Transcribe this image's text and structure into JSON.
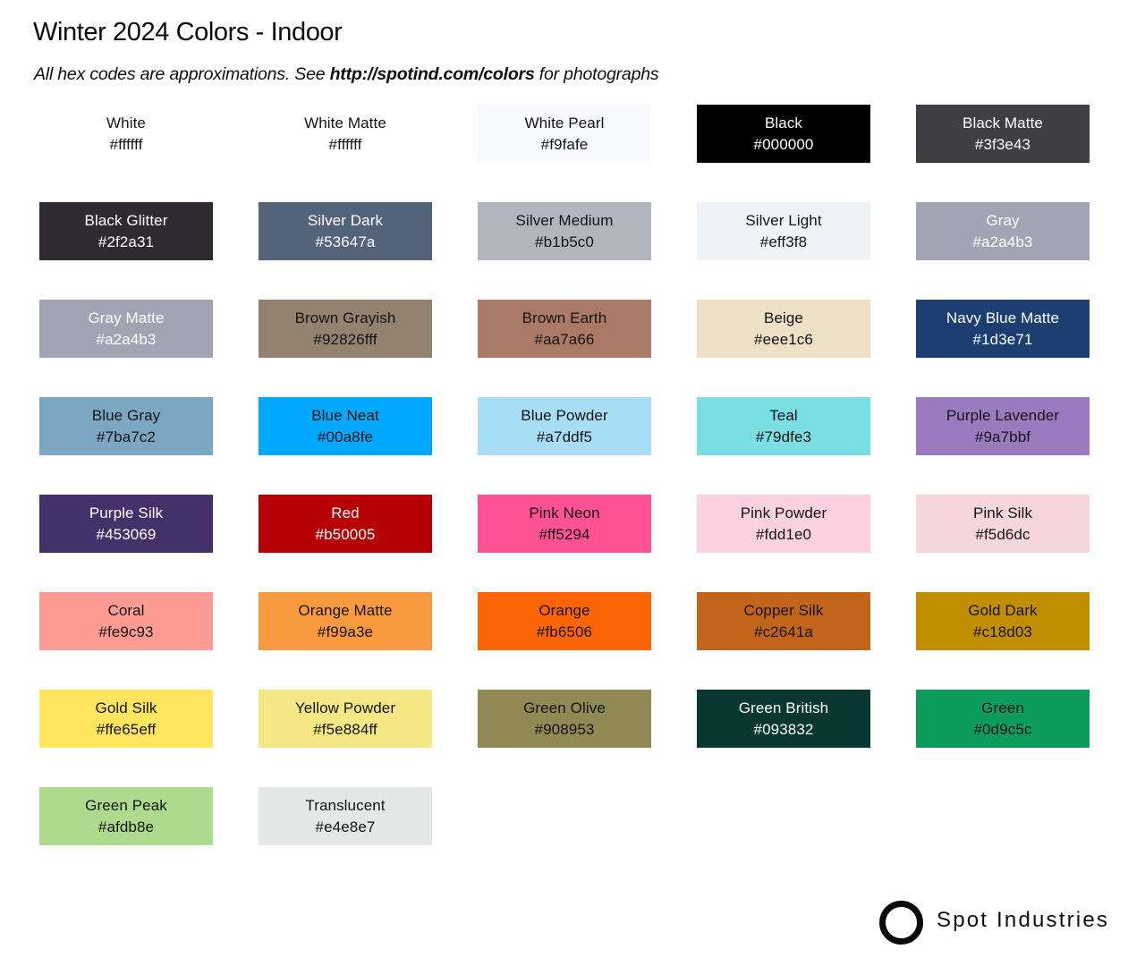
{
  "header": {
    "title": "Winter 2024 Colors - Indoor",
    "subtitle_prefix": "All hex codes are approximations. See ",
    "subtitle_link": "http://spotind.com/colors",
    "subtitle_suffix": " for photographs"
  },
  "footer": {
    "brand": "Spot Industries",
    "logo_icon": "circle-outline-icon"
  },
  "swatches": [
    {
      "name": "White",
      "hex": "#ffffff",
      "bg": "#ffffff",
      "text": "dark"
    },
    {
      "name": "White Matte",
      "hex": "#ffffff",
      "bg": "#ffffff",
      "text": "dark"
    },
    {
      "name": "White Pearl",
      "hex": "#f9fafe",
      "bg": "#f9fafe",
      "text": "dark"
    },
    {
      "name": "Black",
      "hex": "#000000",
      "bg": "#000000",
      "text": "light"
    },
    {
      "name": "Black Matte",
      "hex": "#3f3e43",
      "bg": "#3f3e43",
      "text": "light"
    },
    {
      "name": "Black Glitter",
      "hex": "#2f2a31",
      "bg": "#2f2a31",
      "text": "light",
      "texture": "glitter"
    },
    {
      "name": "Silver Dark",
      "hex": "#53647a",
      "bg": "#53647a",
      "text": "light"
    },
    {
      "name": "Silver Medium",
      "hex": "#b1b5c0",
      "bg": "#b1b5c0",
      "text": "dark"
    },
    {
      "name": "Silver Light",
      "hex": "#eff3f8",
      "bg": "#eff3f8",
      "text": "dark"
    },
    {
      "name": "Gray",
      "hex": "#a2a4b3",
      "bg": "#a2a4b3",
      "text": "light"
    },
    {
      "name": "Gray Matte",
      "hex": "#a2a4b3",
      "bg": "#a2a4b3",
      "text": "light"
    },
    {
      "name": "Brown Grayish",
      "hex": "#92826fff",
      "bg": "#92826f",
      "text": "dark"
    },
    {
      "name": "Brown Earth",
      "hex": "#aa7a66",
      "bg": "#aa7a66",
      "text": "dark"
    },
    {
      "name": "Beige",
      "hex": "#eee1c6",
      "bg": "#eee1c6",
      "text": "dark"
    },
    {
      "name": "Navy Blue Matte",
      "hex": "#1d3e71",
      "bg": "#1d3e71",
      "text": "light"
    },
    {
      "name": "Blue Gray",
      "hex": "#7ba7c2",
      "bg": "#7ba7c2",
      "text": "dark"
    },
    {
      "name": "Blue Neat",
      "hex": "#00a8fe",
      "bg": "#00a8fe",
      "text": "dark"
    },
    {
      "name": "Blue Powder",
      "hex": "#a7ddf5",
      "bg": "#a7ddf5",
      "text": "dark"
    },
    {
      "name": "Teal",
      "hex": "#79dfe3",
      "bg": "#79dfe3",
      "text": "dark"
    },
    {
      "name": "Purple Lavender",
      "hex": "#9a7bbf",
      "bg": "#9a7bbf",
      "text": "dark"
    },
    {
      "name": "Purple Silk",
      "hex": "#453069",
      "bg": "#453069",
      "text": "light"
    },
    {
      "name": "Red",
      "hex": "#b50005",
      "bg": "#b50005",
      "text": "light"
    },
    {
      "name": "Pink Neon",
      "hex": "#ff5294",
      "bg": "#ff5294",
      "text": "dark"
    },
    {
      "name": "Pink Powder",
      "hex": "#fdd1e0",
      "bg": "#fdd1e0",
      "text": "dark"
    },
    {
      "name": "Pink Silk",
      "hex": "#f5d6dc",
      "bg": "#f5d6dc",
      "text": "dark"
    },
    {
      "name": "Coral",
      "hex": "#fe9c93",
      "bg": "#fe9c93",
      "text": "dark"
    },
    {
      "name": "Orange Matte",
      "hex": "#f99a3e",
      "bg": "#f99a3e",
      "text": "dark"
    },
    {
      "name": "Orange",
      "hex": "#fb6506",
      "bg": "#fb6506",
      "text": "dark"
    },
    {
      "name": "Copper Silk",
      "hex": "#c2641a",
      "bg": "#c2641a",
      "text": "dark"
    },
    {
      "name": "Gold Dark",
      "hex": "#c18d03",
      "bg": "#c18d03",
      "text": "dark"
    },
    {
      "name": "Gold Silk",
      "hex": "#ffe65eff",
      "bg": "#ffe65e",
      "text": "dark"
    },
    {
      "name": "Yellow Powder",
      "hex": "#f5e884ff",
      "bg": "#f5e884",
      "text": "dark"
    },
    {
      "name": "Green Olive",
      "hex": "#908953",
      "bg": "#908953",
      "text": "dark"
    },
    {
      "name": "Green British",
      "hex": "#093832",
      "bg": "#093832",
      "text": "light"
    },
    {
      "name": "Green",
      "hex": "#0d9c5c",
      "bg": "#0d9c5c",
      "text": "dark"
    },
    {
      "name": "Green Peak",
      "hex": "#afdb8e",
      "bg": "#afdb8e",
      "text": "dark"
    },
    {
      "name": "Translucent",
      "hex": "#e4e8e7",
      "bg": "#e4e8e7",
      "text": "dark"
    }
  ]
}
